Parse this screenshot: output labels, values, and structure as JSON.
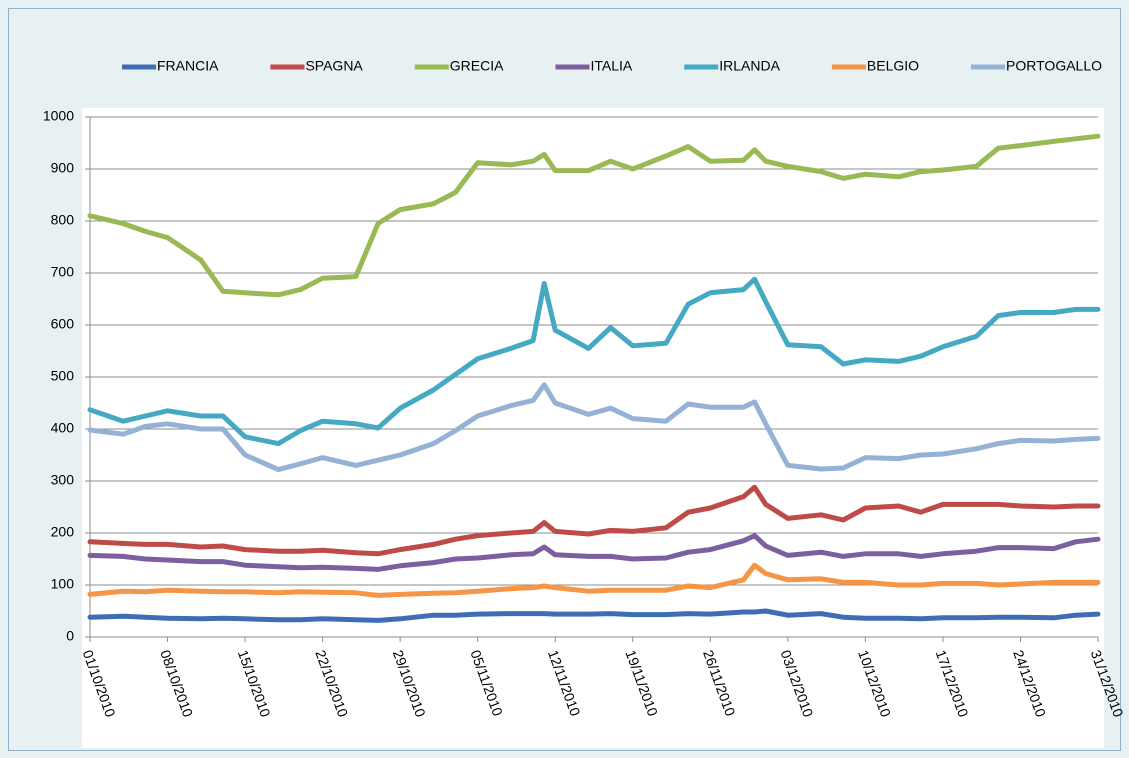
{
  "chart_data": {
    "type": "line",
    "x": [
      "01/10/2010",
      "04/10/2010",
      "06/10/2010",
      "08/10/2010",
      "11/10/2010",
      "13/10/2010",
      "15/10/2010",
      "18/10/2010",
      "20/10/2010",
      "22/10/2010",
      "25/10/2010",
      "27/10/2010",
      "29/10/2010",
      "01/11/2010",
      "03/11/2010",
      "05/11/2010",
      "08/11/2010",
      "10/11/2010",
      "11/11/2010",
      "12/11/2010",
      "15/11/2010",
      "17/11/2010",
      "19/11/2010",
      "22/11/2010",
      "24/11/2010",
      "26/11/2010",
      "29/11/2010",
      "30/11/2010",
      "01/12/2010",
      "03/12/2010",
      "06/12/2010",
      "08/12/2010",
      "10/12/2010",
      "13/12/2010",
      "15/12/2010",
      "17/12/2010",
      "20/12/2010",
      "22/12/2010",
      "24/12/2010",
      "27/12/2010",
      "29/12/2010",
      "31/12/2010"
    ],
    "series": [
      {
        "name": "FRANCIA",
        "color": "#3f6db5",
        "values": [
          38,
          40,
          38,
          36,
          35,
          36,
          35,
          33,
          33,
          35,
          33,
          32,
          35,
          42,
          42,
          44,
          45,
          45,
          45,
          44,
          44,
          45,
          43,
          43,
          45,
          44,
          48,
          48,
          50,
          42,
          45,
          38,
          36,
          36,
          35,
          37,
          37,
          38,
          38,
          37,
          42,
          44
        ]
      },
      {
        "name": "SPAGNA",
        "color": "#be4b48",
        "values": [
          183,
          180,
          178,
          178,
          173,
          175,
          168,
          165,
          165,
          167,
          162,
          160,
          168,
          178,
          188,
          195,
          200,
          203,
          220,
          203,
          198,
          205,
          203,
          210,
          240,
          248,
          270,
          288,
          255,
          228,
          235,
          225,
          248,
          252,
          240,
          255,
          255,
          255,
          252,
          250,
          252,
          252
        ]
      },
      {
        "name": "GRECIA",
        "color": "#98b954",
        "values": [
          810,
          795,
          780,
          768,
          725,
          665,
          662,
          658,
          668,
          690,
          693,
          795,
          822,
          833,
          855,
          912,
          908,
          915,
          928,
          897,
          897,
          915,
          900,
          925,
          943,
          915,
          917,
          937,
          915,
          905,
          895,
          882,
          890,
          885,
          895,
          898,
          905,
          940,
          945,
          953,
          958,
          963
        ]
      },
      {
        "name": "ITALIA",
        "color": "#7d5fa0",
        "values": [
          157,
          155,
          150,
          148,
          145,
          145,
          138,
          135,
          133,
          134,
          132,
          130,
          137,
          143,
          150,
          152,
          158,
          160,
          173,
          158,
          155,
          155,
          150,
          152,
          163,
          168,
          185,
          195,
          175,
          157,
          163,
          155,
          160,
          160,
          155,
          160,
          165,
          172,
          172,
          170,
          183,
          188
        ]
      },
      {
        "name": "IRLANDA",
        "color": "#46a9c4",
        "values": [
          437,
          415,
          425,
          435,
          425,
          425,
          385,
          372,
          397,
          415,
          410,
          402,
          440,
          475,
          505,
          535,
          555,
          570,
          680,
          590,
          555,
          595,
          560,
          565,
          640,
          662,
          668,
          688,
          645,
          562,
          558,
          525,
          533,
          530,
          540,
          558,
          578,
          618,
          624,
          624,
          630,
          630
        ]
      },
      {
        "name": "BELGIO",
        "color": "#f69545",
        "values": [
          82,
          88,
          87,
          90,
          88,
          87,
          87,
          85,
          87,
          86,
          85,
          80,
          82,
          84,
          85,
          88,
          93,
          95,
          98,
          95,
          88,
          90,
          90,
          90,
          98,
          95,
          110,
          138,
          122,
          110,
          112,
          105,
          105,
          100,
          100,
          103,
          103,
          100,
          102,
          105,
          105,
          105
        ]
      },
      {
        "name": "PORTOGALLO",
        "color": "#95b2d6",
        "values": [
          398,
          390,
          405,
          410,
          400,
          400,
          350,
          322,
          333,
          345,
          330,
          340,
          350,
          372,
          397,
          425,
          445,
          455,
          485,
          450,
          428,
          440,
          420,
          415,
          448,
          442,
          442,
          452,
          410,
          330,
          323,
          325,
          345,
          343,
          350,
          352,
          362,
          372,
          378,
          377,
          380,
          382
        ]
      }
    ],
    "xticks": [
      "01/10/2010",
      "08/10/2010",
      "15/10/2010",
      "22/10/2010",
      "29/10/2010",
      "05/11/2010",
      "12/11/2010",
      "19/11/2010",
      "26/11/2010",
      "03/12/2010",
      "10/12/2010",
      "17/12/2010",
      "24/12/2010",
      "31/12/2010"
    ],
    "xlim": [
      "01/10/2010",
      "31/12/2010"
    ],
    "ylim": [
      0,
      1000
    ],
    "yticks": [
      0,
      100,
      200,
      300,
      400,
      500,
      600,
      700,
      800,
      900,
      1000
    ],
    "grid": true,
    "legend": "top"
  }
}
